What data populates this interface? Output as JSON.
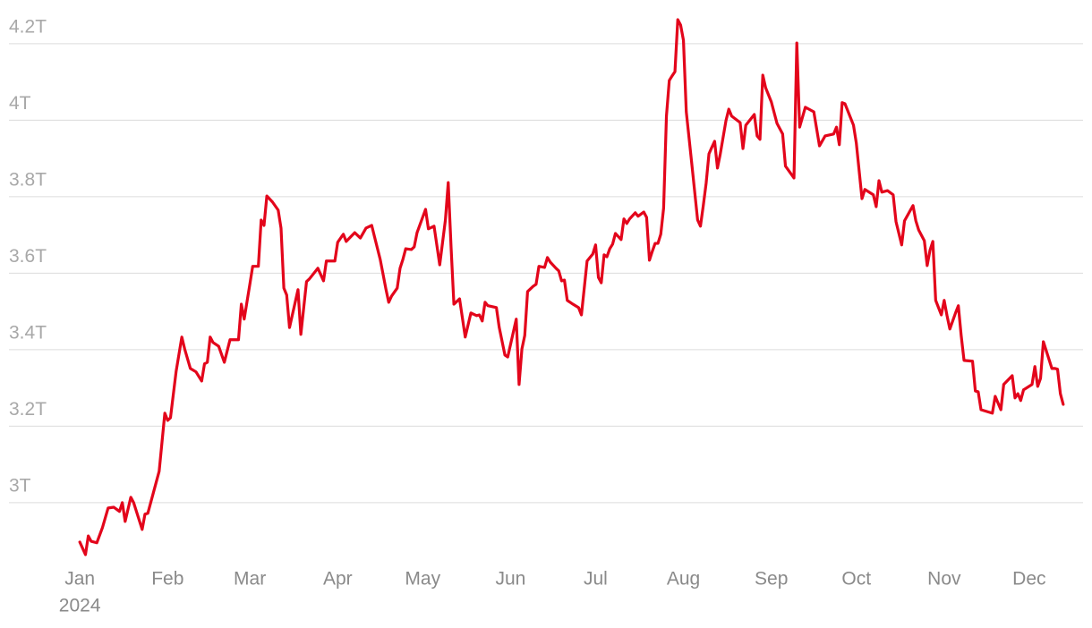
{
  "chart_data": {
    "type": "line",
    "color": "#e3051b",
    "grid": true,
    "x": [
      0,
      2,
      3,
      4,
      6,
      8,
      10,
      12,
      14,
      15,
      16,
      18,
      19,
      22,
      23,
      24,
      28,
      30,
      31,
      32,
      34,
      36,
      37,
      39,
      41,
      43,
      44,
      45,
      46,
      47,
      49,
      51,
      53,
      56,
      57,
      58,
      60,
      61,
      63,
      64,
      65,
      66,
      68,
      70,
      71,
      72,
      73,
      74,
      77,
      78,
      80,
      81,
      84,
      86,
      87,
      90,
      91,
      93,
      94,
      97,
      99,
      101,
      103,
      104,
      106,
      108,
      109,
      110,
      112,
      113,
      114,
      115,
      117,
      118,
      119,
      122,
      123,
      125,
      127,
      129,
      130,
      131,
      132,
      134,
      136,
      138,
      140,
      141,
      142,
      143,
      144,
      147,
      148,
      150,
      151,
      154,
      155,
      156,
      157,
      158,
      160,
      161,
      162,
      164,
      165,
      166,
      168,
      169,
      170,
      171,
      172,
      174,
      176,
      177,
      178,
      179,
      181,
      182,
      183,
      184,
      185,
      186,
      187,
      188,
      189,
      191,
      192,
      193,
      194,
      196,
      197,
      199,
      200,
      201,
      202,
      203,
      204,
      205,
      206,
      207,
      208,
      209,
      210,
      211,
      212,
      213,
      214,
      216,
      218,
      219,
      220,
      221,
      222,
      223,
      224,
      225,
      226,
      228,
      229,
      230,
      233,
      234,
      235,
      238,
      239,
      240,
      241,
      242,
      244,
      246,
      248,
      249,
      252,
      253,
      254,
      256,
      259,
      261,
      263,
      266,
      267,
      268,
      269,
      270,
      273,
      274,
      276,
      277,
      280,
      281,
      282,
      283,
      285,
      287,
      288,
      290,
      291,
      294,
      295,
      296,
      298,
      299,
      300,
      301,
      302,
      304,
      305,
      306,
      307,
      309,
      310,
      311,
      312,
      315,
      316,
      317,
      318,
      322,
      323,
      325,
      326,
      329,
      330,
      331,
      332,
      333,
      336,
      337,
      338,
      339,
      340,
      343,
      344,
      345,
      346,
      347
    ],
    "values": [
      2.897,
      2.864,
      2.913,
      2.899,
      2.895,
      2.935,
      2.986,
      2.988,
      2.977,
      3.0,
      2.951,
      3.014,
      3.0,
      2.93,
      2.97,
      2.972,
      3.082,
      3.234,
      3.215,
      3.222,
      3.344,
      3.433,
      3.402,
      3.351,
      3.342,
      3.318,
      3.363,
      3.367,
      3.433,
      3.419,
      3.409,
      3.367,
      3.426,
      3.426,
      3.519,
      3.48,
      3.571,
      3.618,
      3.618,
      3.739,
      3.725,
      3.802,
      3.786,
      3.765,
      3.718,
      3.561,
      3.543,
      3.458,
      3.557,
      3.44,
      3.578,
      3.585,
      3.613,
      3.58,
      3.632,
      3.632,
      3.681,
      3.702,
      3.683,
      3.706,
      3.692,
      3.718,
      3.725,
      3.695,
      3.636,
      3.559,
      3.524,
      3.54,
      3.561,
      3.613,
      3.636,
      3.664,
      3.662,
      3.669,
      3.706,
      3.767,
      3.716,
      3.723,
      3.622,
      3.739,
      3.837,
      3.669,
      3.519,
      3.533,
      3.433,
      3.496,
      3.489,
      3.491,
      3.475,
      3.524,
      3.515,
      3.51,
      3.458,
      3.386,
      3.381,
      3.48,
      3.309,
      3.402,
      3.437,
      3.552,
      3.566,
      3.571,
      3.618,
      3.615,
      3.641,
      3.629,
      3.613,
      3.606,
      3.58,
      3.582,
      3.529,
      3.519,
      3.51,
      3.491,
      3.561,
      3.632,
      3.65,
      3.674,
      3.589,
      3.575,
      3.648,
      3.643,
      3.664,
      3.676,
      3.704,
      3.688,
      3.742,
      3.73,
      3.742,
      3.758,
      3.749,
      3.76,
      3.746,
      3.634,
      3.657,
      3.678,
      3.678,
      3.702,
      3.77,
      4.011,
      4.104,
      4.116,
      4.127,
      4.263,
      4.249,
      4.209,
      4.022,
      3.882,
      3.739,
      3.723,
      3.777,
      3.835,
      3.912,
      3.929,
      3.945,
      3.875,
      3.912,
      3.999,
      4.029,
      4.011,
      3.994,
      3.926,
      3.987,
      4.015,
      3.959,
      3.95,
      4.118,
      4.085,
      4.048,
      3.992,
      3.964,
      3.88,
      3.849,
      4.202,
      3.982,
      4.034,
      4.022,
      3.933,
      3.959,
      3.964,
      3.982,
      3.936,
      4.046,
      4.043,
      3.987,
      3.94,
      3.795,
      3.819,
      3.805,
      3.774,
      3.842,
      3.812,
      3.816,
      3.805,
      3.735,
      3.674,
      3.737,
      3.777,
      3.737,
      3.713,
      3.685,
      3.62,
      3.66,
      3.683,
      3.529,
      3.491,
      3.529,
      3.489,
      3.454,
      3.496,
      3.515,
      3.437,
      3.372,
      3.37,
      3.292,
      3.29,
      3.243,
      3.234,
      3.278,
      3.243,
      3.309,
      3.332,
      3.274,
      3.285,
      3.267,
      3.295,
      3.309,
      3.356,
      3.304,
      3.325,
      3.421,
      3.351,
      3.351,
      3.349,
      3.285,
      3.257
    ],
    "xlim": [
      -25,
      354
    ],
    "ylim": [
      2.85,
      4.27
    ],
    "xticks": [
      {
        "value": 0,
        "label": "Jan"
      },
      {
        "value": 31,
        "label": "Feb"
      },
      {
        "value": 60,
        "label": "Mar"
      },
      {
        "value": 91,
        "label": "Apr"
      },
      {
        "value": 121,
        "label": "May"
      },
      {
        "value": 152,
        "label": "Jun"
      },
      {
        "value": 182,
        "label": "Jul"
      },
      {
        "value": 213,
        "label": "Aug"
      },
      {
        "value": 244,
        "label": "Sep"
      },
      {
        "value": 274,
        "label": "Oct"
      },
      {
        "value": 305,
        "label": "Nov"
      },
      {
        "value": 335,
        "label": "Dec"
      }
    ],
    "year_label": "2024",
    "yticks": [
      {
        "value": 3,
        "label": "3T"
      },
      {
        "value": 3.2,
        "label": "3.2T"
      },
      {
        "value": 3.4,
        "label": "3.4T"
      },
      {
        "value": 3.6,
        "label": "3.6T"
      },
      {
        "value": 3.8,
        "label": "3.8T"
      },
      {
        "value": 4,
        "label": "4T"
      },
      {
        "value": 4.2,
        "label": "4.2T"
      }
    ]
  }
}
